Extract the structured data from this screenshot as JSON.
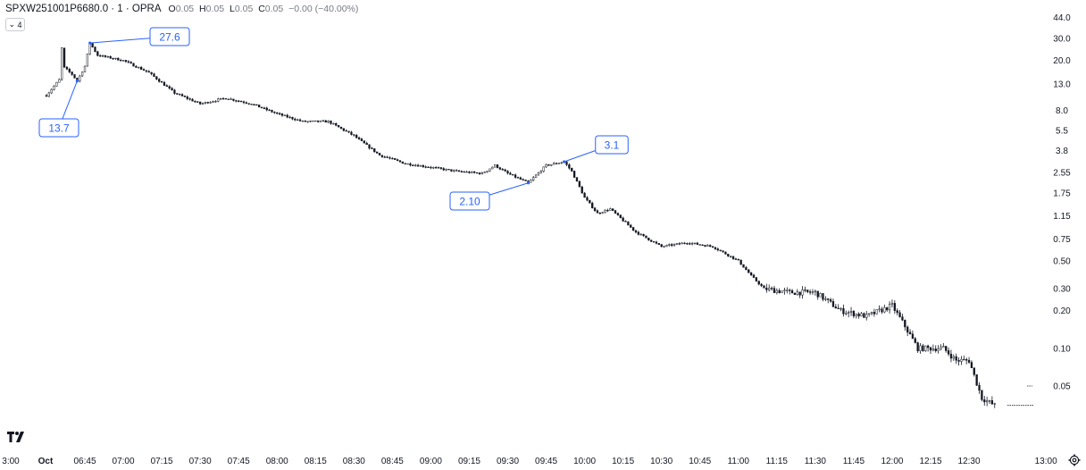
{
  "header": {
    "symbol": "SPXW251001P6680.0 · 1 · OPRA",
    "ohlc": [
      {
        "k": "O",
        "v": "0.05"
      },
      {
        "k": "H",
        "v": "0.05"
      },
      {
        "k": "L",
        "v": "0.05"
      },
      {
        "k": "C",
        "v": "0.05"
      },
      {
        "k": "",
        "v": "−0.00 (−40.00%)"
      }
    ],
    "collapse_label": "4"
  },
  "icons": {
    "logo": "tradingview-logo-icon",
    "settings": "gear-icon",
    "collapse": "chevron-down-icon"
  },
  "colors": {
    "candle": "#131722",
    "annotation": "#2962ff",
    "background": "#ffffff"
  },
  "chart_data": {
    "type": "candlestick",
    "y_scale": "log",
    "y_ticks": [
      "44.0",
      "30.0",
      "20.0",
      "13.0",
      "8.0",
      "5.5",
      "3.8",
      "2.55",
      "1.75",
      "1.15",
      "0.75",
      "0.50",
      "0.30",
      "0.20",
      "0.10",
      "0.05"
    ],
    "x_ticks": [
      "3:00",
      "Oct",
      "06:45",
      "07:00",
      "07:15",
      "07:30",
      "07:45",
      "08:00",
      "08:15",
      "08:30",
      "08:45",
      "09:00",
      "09:15",
      "09:30",
      "09:45",
      "10:00",
      "10:15",
      "10:30",
      "10:45",
      "11:00",
      "11:15",
      "11:30",
      "11:45",
      "12:00",
      "12:15",
      "12:30",
      "13:00"
    ],
    "price_path": [
      [
        "06:30",
        10.5
      ],
      [
        "06:35",
        14.0
      ],
      [
        "06:36",
        25.0
      ],
      [
        "06:37",
        17.5
      ],
      [
        "06:40",
        15.5
      ],
      [
        "06:42",
        13.7
      ],
      [
        "06:45",
        18.0
      ],
      [
        "06:47",
        27.6
      ],
      [
        "06:50",
        22.0
      ],
      [
        "06:55",
        21.0
      ],
      [
        "07:00",
        20.0
      ],
      [
        "07:10",
        16.0
      ],
      [
        "07:20",
        11.0
      ],
      [
        "07:30",
        9.0
      ],
      [
        "07:40",
        10.0
      ],
      [
        "07:50",
        9.0
      ],
      [
        "08:00",
        7.5
      ],
      [
        "08:10",
        6.5
      ],
      [
        "08:20",
        6.5
      ],
      [
        "08:30",
        5.0
      ],
      [
        "08:40",
        3.5
      ],
      [
        "08:50",
        3.0
      ],
      [
        "09:00",
        2.8
      ],
      [
        "09:10",
        2.6
      ],
      [
        "09:20",
        2.5
      ],
      [
        "09:25",
        2.9
      ],
      [
        "09:30",
        2.5
      ],
      [
        "09:38",
        2.1
      ],
      [
        "09:45",
        2.9
      ],
      [
        "09:52",
        3.1
      ],
      [
        "09:55",
        2.6
      ],
      [
        "10:00",
        1.6
      ],
      [
        "10:05",
        1.2
      ],
      [
        "10:10",
        1.3
      ],
      [
        "10:20",
        0.85
      ],
      [
        "10:30",
        0.65
      ],
      [
        "10:40",
        0.7
      ],
      [
        "10:50",
        0.65
      ],
      [
        "11:00",
        0.5
      ],
      [
        "11:05",
        0.38
      ],
      [
        "11:10",
        0.3
      ],
      [
        "11:20",
        0.28
      ],
      [
        "11:30",
        0.28
      ],
      [
        "11:40",
        0.2
      ],
      [
        "11:50",
        0.18
      ],
      [
        "12:00",
        0.22
      ],
      [
        "12:05",
        0.15
      ],
      [
        "12:10",
        0.1
      ],
      [
        "12:20",
        0.1
      ],
      [
        "12:25",
        0.08
      ],
      [
        "12:30",
        0.08
      ],
      [
        "12:35",
        0.04
      ],
      [
        "12:40",
        0.035
      ]
    ],
    "annotations": [
      {
        "label": "27.6",
        "time": "06:47",
        "price": 27.6,
        "type": "high"
      },
      {
        "label": "13.7",
        "time": "06:42",
        "price": 13.7,
        "type": "low"
      },
      {
        "label": "3.1",
        "time": "09:52",
        "price": 3.1,
        "type": "high"
      },
      {
        "label": "2.10",
        "time": "09:38",
        "price": 2.1,
        "type": "low"
      }
    ]
  }
}
